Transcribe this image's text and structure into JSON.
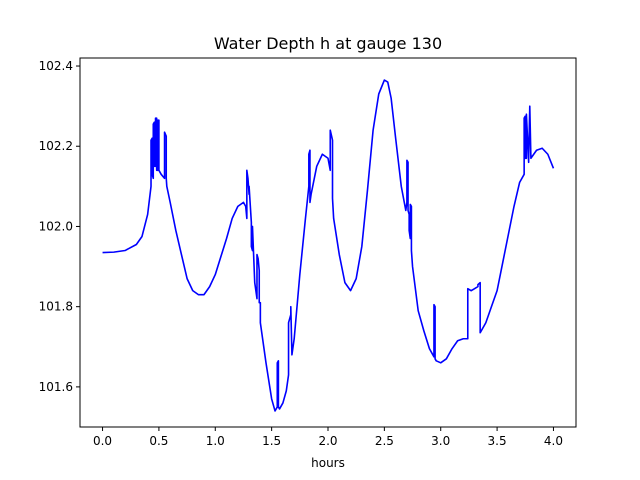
{
  "chart_data": {
    "type": "line",
    "title": "Water Depth h at gauge 130",
    "xlabel": "hours",
    "ylabel": "",
    "xlim": [
      -0.2,
      4.2
    ],
    "ylim": [
      101.5,
      102.42
    ],
    "grid": false,
    "legend": "none",
    "xticks": [
      0.0,
      0.5,
      1.0,
      1.5,
      2.0,
      2.5,
      3.0,
      3.5,
      4.0
    ],
    "xtick_labels": [
      "0.0",
      "0.5",
      "1.0",
      "1.5",
      "2.0",
      "2.5",
      "3.0",
      "3.5",
      "4.0"
    ],
    "yticks": [
      101.6,
      101.8,
      102.0,
      102.2,
      102.4
    ],
    "ytick_labels": [
      "101.6",
      "101.8",
      "102.0",
      "102.2",
      "102.4"
    ],
    "series": [
      {
        "name": "",
        "color": "#0000ff",
        "x": [
          0.0,
          0.1,
          0.2,
          0.3,
          0.35,
          0.4,
          0.43,
          0.43,
          0.44,
          0.44,
          0.45,
          0.45,
          0.46,
          0.46,
          0.47,
          0.47,
          0.48,
          0.48,
          0.49,
          0.49,
          0.5,
          0.5,
          0.52,
          0.55,
          0.55,
          0.565,
          0.565,
          0.57,
          0.6,
          0.65,
          0.7,
          0.75,
          0.8,
          0.85,
          0.9,
          0.95,
          1.0,
          1.05,
          1.1,
          1.15,
          1.2,
          1.25,
          1.27,
          1.28,
          1.28,
          1.29,
          1.3,
          1.3,
          1.32,
          1.32,
          1.33,
          1.33,
          1.35,
          1.37,
          1.37,
          1.38,
          1.39,
          1.39,
          1.4,
          1.4,
          1.45,
          1.5,
          1.53,
          1.55,
          1.55,
          1.56,
          1.56,
          1.57,
          1.6,
          1.63,
          1.65,
          1.65,
          1.67,
          1.67,
          1.68,
          1.7,
          1.75,
          1.8,
          1.83,
          1.83,
          1.84,
          1.84,
          1.85,
          1.9,
          1.95,
          2.0,
          2.02,
          2.02,
          2.04,
          2.04,
          2.05,
          2.1,
          2.15,
          2.2,
          2.25,
          2.3,
          2.35,
          2.4,
          2.45,
          2.5,
          2.53,
          2.56,
          2.6,
          2.65,
          2.69,
          2.7,
          2.7,
          2.71,
          2.71,
          2.72,
          2.72,
          2.73,
          2.73,
          2.74,
          2.74,
          2.75,
          2.8,
          2.85,
          2.9,
          2.94,
          2.94,
          2.95,
          2.95,
          2.96,
          3.0,
          3.05,
          3.1,
          3.15,
          3.2,
          3.24,
          3.24,
          3.27,
          3.3,
          3.33,
          3.33,
          3.35,
          3.35,
          3.36,
          3.4,
          3.45,
          3.5,
          3.55,
          3.6,
          3.65,
          3.7,
          3.74,
          3.74,
          3.75,
          3.75,
          3.76,
          3.76,
          3.78,
          3.78,
          3.79,
          3.79,
          3.8,
          3.85,
          3.9,
          3.95,
          4.0
        ],
        "values": [
          101.935,
          101.936,
          101.94,
          101.955,
          101.975,
          102.03,
          102.1,
          102.215,
          102.22,
          102.13,
          102.12,
          102.255,
          102.26,
          102.15,
          102.15,
          102.27,
          102.27,
          102.14,
          102.14,
          102.265,
          102.265,
          102.14,
          102.13,
          102.12,
          102.235,
          102.225,
          102.12,
          102.1,
          102.06,
          101.99,
          101.93,
          101.87,
          101.84,
          101.83,
          101.83,
          101.85,
          101.88,
          101.925,
          101.97,
          102.02,
          102.05,
          102.06,
          102.05,
          102.02,
          102.14,
          102.12,
          102.08,
          102.1,
          102.01,
          101.95,
          101.94,
          102.0,
          101.86,
          101.82,
          101.93,
          101.92,
          101.89,
          101.81,
          101.81,
          101.76,
          101.66,
          101.57,
          101.54,
          101.55,
          101.66,
          101.665,
          101.55,
          101.545,
          101.56,
          101.59,
          101.63,
          101.76,
          101.78,
          101.8,
          101.68,
          101.72,
          101.88,
          102.02,
          102.1,
          102.18,
          102.19,
          102.06,
          102.08,
          102.15,
          102.18,
          102.17,
          102.14,
          102.24,
          102.215,
          102.07,
          102.02,
          101.93,
          101.86,
          101.84,
          101.87,
          101.95,
          102.09,
          102.24,
          102.33,
          102.365,
          102.36,
          102.32,
          102.22,
          102.1,
          102.04,
          102.06,
          102.165,
          102.16,
          102.04,
          102.03,
          101.99,
          101.97,
          102.055,
          102.05,
          101.94,
          101.9,
          101.79,
          101.74,
          101.695,
          101.675,
          101.805,
          101.8,
          101.67,
          101.665,
          101.66,
          101.67,
          101.695,
          101.715,
          101.72,
          101.72,
          101.845,
          101.84,
          101.845,
          101.85,
          101.855,
          101.86,
          101.735,
          101.74,
          101.76,
          101.8,
          101.84,
          101.91,
          101.98,
          102.05,
          102.11,
          102.13,
          102.27,
          102.275,
          102.17,
          102.17,
          102.28,
          102.16,
          102.165,
          102.3,
          102.3,
          102.17,
          102.19,
          102.195,
          102.18,
          102.145
        ]
      }
    ]
  }
}
